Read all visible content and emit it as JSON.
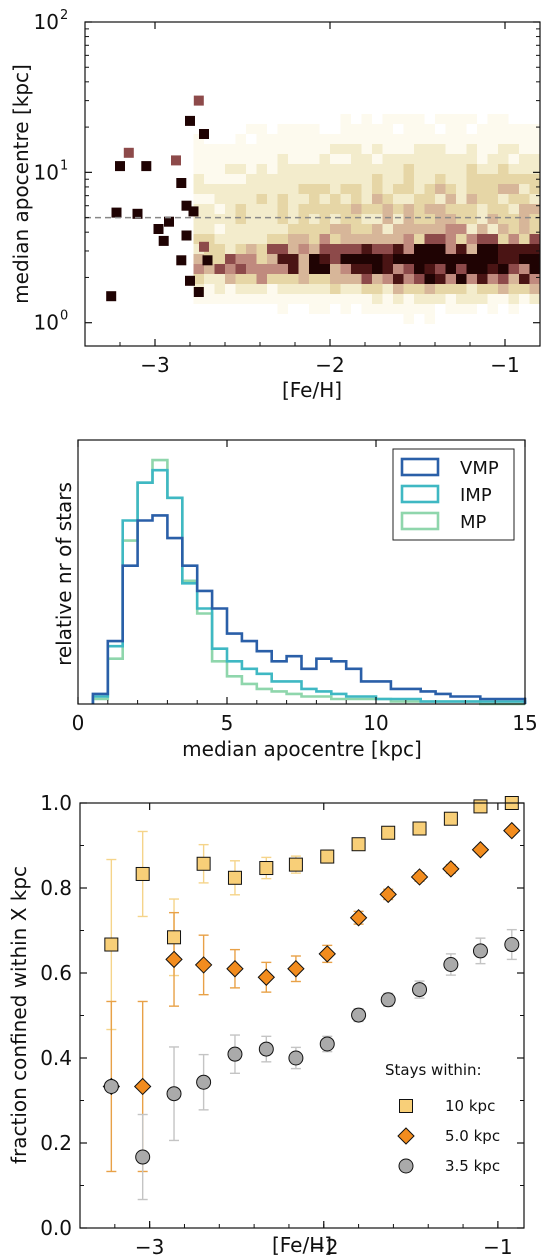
{
  "chart_data": [
    {
      "type": "heatmap",
      "xlabel": "[Fe/H]",
      "ylabel": "median apocentre [kpc]",
      "xlim": [
        -3.4,
        -0.8
      ],
      "ylim": [
        0.7,
        100
      ],
      "yscale": "log",
      "xticks": [
        "−3",
        "−2",
        "−1"
      ],
      "yticks": [
        {
          "base": "10",
          "exp": "0"
        },
        {
          "base": "10",
          "exp": "1"
        },
        {
          "base": "10",
          "exp": "2"
        }
      ],
      "reference_line": {
        "y": 5,
        "style": "dashed",
        "color": "#888888"
      },
      "colormap": [
        "#fdfaee",
        "#f3eccc",
        "#e6d6a6",
        "#d7b699",
        "#c08a7e",
        "#8d4a4a",
        "#4a1414",
        "#1f0303"
      ],
      "colorbar": "none",
      "grid": false
    },
    {
      "type": "step",
      "xlabel": "median apocentre [kpc]",
      "ylabel": "relative nr of stars",
      "xlim": [
        0,
        15
      ],
      "ylim": [
        0,
        1.05
      ],
      "xticks": [
        "0",
        "5",
        "10",
        "15"
      ],
      "legend": "top-right",
      "grid": false,
      "bin_edges": [
        0.5,
        1.0,
        1.5,
        2.0,
        2.5,
        3.0,
        3.5,
        4.0,
        4.5,
        5.0,
        5.5,
        6.0,
        6.5,
        7.0,
        7.5,
        8.0,
        8.5,
        9.0,
        9.5,
        10.0,
        10.5,
        11.0,
        11.5,
        12.0,
        12.5,
        13.0,
        13.5,
        14.0,
        14.5,
        15.0
      ],
      "series": [
        {
          "name": "VMP",
          "color": "#2a5fa8",
          "values": [
            0.04,
            0.25,
            0.55,
            0.73,
            0.75,
            0.66,
            0.55,
            0.45,
            0.38,
            0.28,
            0.25,
            0.21,
            0.17,
            0.19,
            0.14,
            0.18,
            0.17,
            0.14,
            0.09,
            0.09,
            0.06,
            0.06,
            0.05,
            0.04,
            0.03,
            0.03,
            0.02,
            0.02,
            0.02
          ]
        },
        {
          "name": "IMP",
          "color": "#3fb8c3",
          "values": [
            0.03,
            0.23,
            0.73,
            0.88,
            0.93,
            0.82,
            0.48,
            0.38,
            0.22,
            0.17,
            0.14,
            0.12,
            0.09,
            0.09,
            0.06,
            0.05,
            0.04,
            0.03,
            0.03,
            0.02,
            0.02,
            0.02,
            0.01,
            0.01,
            0.01,
            0.01,
            0.01,
            0.01,
            0.01
          ]
        },
        {
          "name": "MP",
          "color": "#8fd6ac",
          "values": [
            0.02,
            0.18,
            0.65,
            0.88,
            0.97,
            0.82,
            0.49,
            0.36,
            0.17,
            0.11,
            0.08,
            0.06,
            0.05,
            0.04,
            0.03,
            0.03,
            0.02,
            0.02,
            0.02,
            0.02,
            0.01,
            0.01,
            0.01,
            0.01,
            0.01,
            0.01,
            0.0,
            0.0,
            0.0
          ]
        }
      ]
    },
    {
      "type": "scatter",
      "xlabel": "[Fe/H]",
      "ylabel": "fraction confined within X kpc",
      "xlim": [
        -3.4,
        -0.85
      ],
      "ylim": [
        0.0,
        1.0
      ],
      "xticks": [
        "−3",
        "−2",
        "−1"
      ],
      "yticks": [
        "0.0",
        "0.2",
        "0.4",
        "0.6",
        "0.8",
        "1.0"
      ],
      "legend": "bottom-right",
      "legend_title": "Stays within:",
      "grid": false,
      "x": [
        -3.22,
        -3.04,
        -2.86,
        -2.69,
        -2.51,
        -2.33,
        -2.16,
        -1.98,
        -1.8,
        -1.63,
        -1.45,
        -1.27,
        -1.1,
        -0.92
      ],
      "series": [
        {
          "name": "10 kpc",
          "marker": "square",
          "color": "#f8cf78",
          "errcolor": "#f5d48a",
          "values": [
            0.667,
            0.833,
            0.684,
            0.857,
            0.824,
            0.847,
            0.855,
            0.874,
            0.903,
            0.93,
            0.94,
            0.963,
            0.992,
            1.0
          ],
          "errors": [
            0.2,
            0.1,
            0.09,
            0.045,
            0.04,
            0.025,
            0.02,
            0.015,
            0.012,
            0.01,
            0.008,
            0.006,
            0.004,
            0.002
          ]
        },
        {
          "name": "5.0 kpc",
          "marker": "diamond",
          "color": "#f28c1e",
          "errcolor": "#e8a147",
          "values": [
            0.333,
            0.333,
            0.632,
            0.619,
            0.61,
            0.59,
            0.61,
            0.645,
            0.73,
            0.785,
            0.826,
            0.845,
            0.89,
            0.935
          ],
          "errors": [
            0.2,
            0.2,
            0.11,
            0.07,
            0.045,
            0.035,
            0.03,
            0.02,
            0.015,
            0.012,
            0.01,
            0.01,
            0.008,
            0.006
          ]
        },
        {
          "name": "3.5 kpc",
          "marker": "circle",
          "color": "#aaaaaa",
          "errcolor": "#c4c4c4",
          "values": [
            0.333,
            0.167,
            0.316,
            0.343,
            0.409,
            0.421,
            0.4,
            0.433,
            0.501,
            0.537,
            0.561,
            0.62,
            0.652,
            0.667
          ],
          "errors": [
            0.0,
            0.1,
            0.11,
            0.065,
            0.045,
            0.03,
            0.025,
            0.018,
            0.015,
            0.015,
            0.02,
            0.025,
            0.03,
            0.035
          ]
        }
      ]
    }
  ]
}
